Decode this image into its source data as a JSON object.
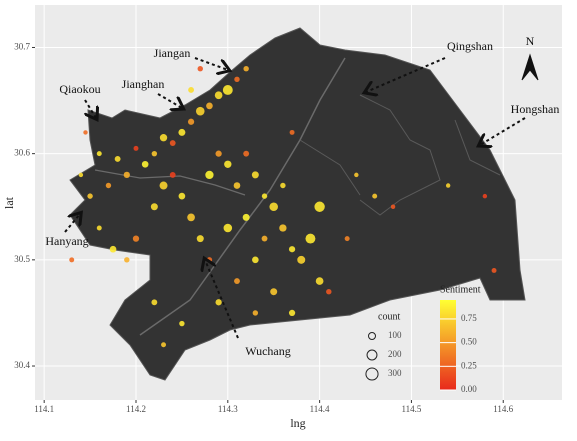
{
  "chart_data": {
    "type": "scatter",
    "xlabel": "lng",
    "ylabel": "lat",
    "xlim": [
      114.09,
      114.664
    ],
    "ylim": [
      30.368,
      30.74
    ],
    "xticks": [
      114.1,
      114.2,
      114.3,
      114.4,
      114.5,
      114.6
    ],
    "yticks": [
      30.4,
      30.5,
      30.6,
      30.7
    ],
    "grid": true,
    "north_label": "N",
    "annotations": [
      "Jiangan",
      "Qingshan",
      "Qiaokou",
      "Jianghan",
      "Hongshan",
      "Hanyang",
      "Wuchang"
    ],
    "size_legend": {
      "title": "count",
      "values": [
        100,
        200,
        300
      ]
    },
    "color_legend": {
      "title": "Sentiment",
      "low": "#e8291c",
      "high": "#ffff33",
      "lim": [
        0,
        0.95
      ],
      "ticks": [
        {
          "value": 0,
          "label": "0.00"
        },
        0.25,
        {
          "value": 0.5,
          "label": "0.50"
        },
        0.75
      ]
    },
    "x": [
      114.29,
      114.3,
      114.28,
      114.31,
      114.27,
      114.26,
      114.25,
      114.24,
      114.23,
      114.22,
      114.21,
      114.2,
      114.19,
      114.18,
      114.17,
      114.16,
      114.145,
      114.15,
      114.16,
      114.175,
      114.19,
      114.2,
      114.22,
      114.23,
      114.24,
      114.25,
      114.26,
      114.27,
      114.28,
      114.29,
      114.3,
      114.31,
      114.32,
      114.33,
      114.34,
      114.35,
      114.36,
      114.37,
      114.38,
      114.39,
      114.4,
      114.41,
      114.35,
      114.33,
      114.31,
      114.29,
      114.28,
      114.3,
      114.32,
      114.34,
      114.36,
      114.4,
      114.43,
      114.46,
      114.48,
      114.58,
      114.59,
      114.54,
      114.25,
      114.23,
      114.22,
      114.33,
      114.37,
      114.14,
      114.13,
      114.27,
      114.32,
      114.37,
      114.44,
      114.26
    ],
    "y": [
      30.655,
      30.66,
      30.645,
      30.67,
      30.64,
      30.63,
      30.62,
      30.61,
      30.615,
      30.6,
      30.59,
      30.605,
      30.58,
      30.595,
      30.57,
      30.6,
      30.62,
      30.56,
      30.53,
      30.51,
      30.5,
      30.52,
      30.55,
      30.57,
      30.58,
      30.56,
      30.54,
      30.52,
      30.58,
      30.6,
      30.59,
      30.57,
      30.6,
      30.58,
      30.56,
      30.55,
      30.53,
      30.51,
      30.5,
      30.52,
      30.48,
      30.47,
      30.47,
      30.5,
      30.48,
      30.46,
      30.5,
      30.53,
      30.54,
      30.52,
      30.57,
      30.55,
      30.52,
      30.56,
      30.55,
      30.56,
      30.49,
      30.57,
      30.44,
      30.42,
      30.46,
      30.45,
      30.45,
      30.58,
      30.5,
      30.68,
      30.68,
      30.62,
      30.58,
      30.66
    ],
    "count": [
      120,
      200,
      90,
      60,
      150,
      80,
      100,
      70,
      110,
      60,
      90,
      50,
      80,
      70,
      60,
      50,
      40,
      60,
      50,
      90,
      60,
      80,
      100,
      130,
      70,
      90,
      120,
      100,
      140,
      80,
      110,
      90,
      70,
      100,
      60,
      150,
      110,
      80,
      130,
      200,
      120,
      60,
      100,
      90,
      70,
      80,
      60,
      150,
      100,
      70,
      60,
      220,
      50,
      50,
      40,
      40,
      50,
      40,
      60,
      50,
      70,
      60,
      80,
      40,
      50,
      60,
      60,
      50,
      40,
      70
    ],
    "sentiment": [
      0.8,
      0.85,
      0.6,
      0.3,
      0.75,
      0.5,
      0.85,
      0.2,
      0.8,
      0.7,
      0.9,
      0.1,
      0.6,
      0.8,
      0.5,
      0.85,
      0.3,
      0.7,
      0.8,
      0.85,
      0.6,
      0.4,
      0.8,
      0.75,
      0.1,
      0.85,
      0.7,
      0.8,
      0.9,
      0.5,
      0.85,
      0.7,
      0.3,
      0.8,
      0.85,
      0.8,
      0.7,
      0.85,
      0.75,
      0.85,
      0.8,
      0.2,
      0.7,
      0.85,
      0.5,
      0.8,
      0.3,
      0.85,
      0.9,
      0.6,
      0.8,
      0.85,
      0.4,
      0.7,
      0.2,
      0.1,
      0.2,
      0.75,
      0.85,
      0.7,
      0.8,
      0.6,
      0.85,
      0.8,
      0.3,
      0.2,
      0.6,
      0.3,
      0.7,
      0.8
    ]
  }
}
